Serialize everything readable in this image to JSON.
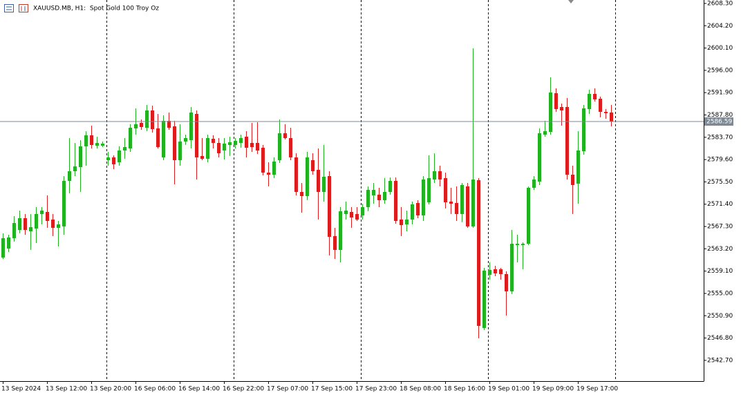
{
  "chart_data": {
    "type": "candlestick",
    "title": "XAUUSD.MB, H1:  Spot Gold 100 Troy Oz",
    "categories": [
      "13 Sep 2024",
      null,
      null,
      null,
      null,
      null,
      null,
      null,
      "13 Sep 12:00",
      null,
      null,
      null,
      null,
      null,
      null,
      null,
      "13 Sep 20:00",
      null,
      null,
      null,
      null,
      null,
      null,
      null,
      "16 Sep 06:00",
      null,
      null,
      null,
      null,
      null,
      null,
      null,
      "16 Sep 14:00",
      null,
      null,
      null,
      null,
      null,
      null,
      null,
      "16 Sep 22:00",
      null,
      null,
      null,
      null,
      null,
      null,
      null,
      "17 Sep 07:00",
      null,
      null,
      null,
      null,
      null,
      null,
      null,
      "17 Sep 15:00",
      null,
      null,
      null,
      null,
      null,
      null,
      null,
      "17 Sep 23:00",
      null,
      null,
      null,
      null,
      null,
      null,
      null,
      "18 Sep 08:00",
      null,
      null,
      null,
      null,
      null,
      null,
      null,
      "18 Sep 16:00",
      null,
      null,
      null,
      null,
      null,
      null,
      null,
      "19 Sep 01:00",
      null,
      null,
      null,
      null,
      null,
      null,
      null,
      "19 Sep 09:00",
      null,
      null,
      null,
      null,
      null,
      null,
      null,
      "19 Sep 17:00",
      null,
      null,
      null,
      null,
      null,
      null
    ],
    "open": [
      2561.6,
      2563.25,
      2565.15,
      2566.67,
      2568.83,
      2566.42,
      2566.93,
      2569.59,
      2569.97,
      2568.58,
      2567.05,
      2567.31,
      2575.68,
      2577.46,
      2578.22,
      2582.03,
      2584.06,
      2582.15,
      2582.15,
      2579.49,
      2580.0,
      2579.11,
      2581.27,
      2581.65,
      2585.33,
      2586.34,
      2585.45,
      2588.63,
      2585.33,
      2580.0,
      2586.72,
      2585.71,
      2579.49,
      2582.92,
      2583.17,
      2587.99,
      2580.25,
      2579.74,
      2583.42,
      2582.66,
      2581.27,
      2582.28,
      2582.28,
      2582.66,
      2583.8,
      2582.66,
      2582.66,
      2581.77,
      2577.2,
      2576.82,
      2579.49,
      2584.44,
      2583.55,
      2580.0,
      2573.65,
      2572.89,
      2579.49,
      2577.71,
      2573.65,
      2576.57,
      2565.53,
      2562.99,
      2569.59,
      2569.97,
      2569.59,
      2569.34,
      2570.86,
      2573.02,
      2573.14,
      2572.13,
      2573.65,
      2575.68,
      2568.58,
      2567.69,
      2568.58,
      2571.62,
      2569.34,
      2571.75,
      2575.94,
      2577.46,
      2576.19,
      2571.88,
      2571.62,
      2569.59,
      2574.67,
      2567.31,
      2575.81,
      2548.65,
      2558.42,
      2559.44,
      2559.44,
      2558.55,
      2555.38,
      2563.88,
      2563.88,
      2564.13,
      2574.41,
      2575.56,
      2584.18,
      2584.69,
      2591.8,
      2589.26,
      2589.26,
      2576.82,
      2575.17,
      2581.14,
      2588.88,
      2591.67,
      2590.78,
      2588.37,
      2588.25
    ],
    "high": [
      2566.04,
      2565.78,
      2569.21,
      2570.23,
      2569.59,
      2569.59,
      2570.86,
      2570.86,
      2573.02,
      2569.59,
      2568.32,
      2576.57,
      2583.55,
      2582.66,
      2583.17,
      2584.82,
      2585.83,
      2583.8,
      2582.92,
      2581.01,
      2580.38,
      2582.03,
      2583.55,
      2586.09,
      2589.01,
      2586.98,
      2589.64,
      2589.51,
      2587.99,
      2587.74,
      2588.25,
      2586.72,
      2586.09,
      2584.18,
      2589.26,
      2588.63,
      2583.55,
      2584.18,
      2584.06,
      2583.55,
      2583.55,
      2583.8,
      2583.55,
      2584.18,
      2584.82,
      2586.34,
      2586.47,
      2582.28,
      2579.11,
      2580.0,
      2586.98,
      2586.09,
      2585.45,
      2580.76,
      2575.3,
      2581.01,
      2580.76,
      2581.65,
      2582.28,
      2577.46,
      2567.05,
      2570.86,
      2571.88,
      2570.86,
      2570.86,
      2571.49,
      2574.67,
      2575.3,
      2574.41,
      2576.19,
      2576.32,
      2576.32,
      2570.86,
      2570.23,
      2571.88,
      2572.13,
      2576.57,
      2580.38,
      2580.76,
      2578.47,
      2577.2,
      2574.41,
      2574.67,
      2575.3,
      2575.3,
      2600.05,
      2576.19,
      2559.69,
      2560.71,
      2560.07,
      2559.69,
      2559.06,
      2566.67,
      2565.78,
      2564.39,
      2574.67,
      2576.57,
      2585.33,
      2586.72,
      2594.72,
      2592.69,
      2589.89,
      2590.91,
      2578.47,
      2584.82,
      2589.64,
      2592.43,
      2592.69,
      2591.16,
      2588.88,
      2589.64
    ],
    "low": [
      2561.34,
      2562.61,
      2564.51,
      2566.04,
      2565.78,
      2562.99,
      2564.26,
      2567.69,
      2567.05,
      2565.53,
      2563.63,
      2565.78,
      2573.4,
      2576.57,
      2573.65,
      2578.47,
      2581.65,
      2581.65,
      2581.9,
      2578.47,
      2577.84,
      2578.47,
      2579.74,
      2581.01,
      2584.18,
      2585.07,
      2584.82,
      2584.57,
      2581.65,
      2579.49,
      2585.07,
      2575.05,
      2578.47,
      2582.28,
      2581.65,
      2575.94,
      2579.49,
      2579.11,
      2581.65,
      2580.0,
      2579.62,
      2580.25,
      2581.65,
      2581.77,
      2580.0,
      2581.01,
      2580.63,
      2576.7,
      2574.67,
      2576.19,
      2578.98,
      2583.3,
      2579.49,
      2573.02,
      2569.84,
      2572.13,
      2576.82,
      2568.58,
      2571.88,
      2561.98,
      2561.34,
      2560.71,
      2568.58,
      2567.05,
      2568.32,
      2568.58,
      2570.1,
      2571.49,
      2570.86,
      2571.49,
      2573.14,
      2567.81,
      2565.53,
      2566.42,
      2567.69,
      2568.83,
      2568.32,
      2571.37,
      2575.3,
      2574.67,
      2570.61,
      2569.59,
      2568.32,
      2568.07,
      2567.05,
      2567.05,
      2546.75,
      2548.27,
      2557.54,
      2558.17,
      2557.54,
      2550.94,
      2554.87,
      2560.71,
      2559.44,
      2563.88,
      2574.03,
      2574.92,
      2583.8,
      2584.18,
      2588.37,
      2585.83,
      2575.94,
      2569.59,
      2571.49,
      2580.5,
      2587.99,
      2590.28,
      2587.36,
      2587.1,
      2585.71
    ],
    "close": [
      2565.15,
      2565.28,
      2567.94,
      2568.83,
      2566.67,
      2567.18,
      2569.59,
      2570.23,
      2568.32,
      2567.05,
      2567.69,
      2575.68,
      2577.46,
      2578.35,
      2582.03,
      2584.06,
      2582.28,
      2582.66,
      2582.53,
      2580.0,
      2578.73,
      2581.27,
      2581.9,
      2585.45,
      2586.09,
      2585.58,
      2588.63,
      2585.2,
      2581.9,
      2586.72,
      2585.45,
      2579.49,
      2582.92,
      2583.55,
      2588.25,
      2580.0,
      2579.74,
      2583.55,
      2582.66,
      2580.76,
      2582.53,
      2582.79,
      2583.04,
      2583.55,
      2581.77,
      2581.9,
      2581.27,
      2577.2,
      2576.82,
      2579.24,
      2584.44,
      2583.55,
      2580.0,
      2573.65,
      2572.89,
      2580.0,
      2577.46,
      2573.65,
      2576.44,
      2565.4,
      2562.99,
      2570.1,
      2570.23,
      2568.96,
      2568.58,
      2570.86,
      2574.03,
      2574.03,
      2572.13,
      2573.65,
      2575.68,
      2568.32,
      2567.56,
      2568.58,
      2571.37,
      2569.34,
      2575.94,
      2576.19,
      2577.46,
      2575.94,
      2571.75,
      2571.49,
      2569.59,
      2574.92,
      2567.31,
      2575.94,
      2549.03,
      2559.19,
      2559.31,
      2558.68,
      2558.55,
      2555.38,
      2564.13,
      2564.13,
      2564.13,
      2574.41,
      2575.94,
      2584.44,
      2584.82,
      2591.93,
      2588.88,
      2588.63,
      2576.82,
      2574.92,
      2581.27,
      2589.01,
      2591.67,
      2590.66,
      2588.37,
      2588.12,
      2586.59
    ],
    "up_color": "#1fb31f",
    "down_color": "#e01b1b",
    "last_price": 2586.59,
    "ylim": [
      2538.88,
      2608.93
    ],
    "yticks": [
      {
        "value": 2608.3,
        "label": "2608.30"
      },
      {
        "value": 2604.2,
        "label": "2604.20"
      },
      {
        "value": 2600.1,
        "label": "2600.10"
      },
      {
        "value": 2596.0,
        "label": "2596.00"
      },
      {
        "value": 2591.9,
        "label": "2591.90"
      },
      {
        "value": 2587.8,
        "label": "2587.80"
      },
      {
        "value": 2583.7,
        "label": "2583.70"
      },
      {
        "value": 2579.6,
        "label": "2579.60"
      },
      {
        "value": 2575.5,
        "label": "2575.50"
      },
      {
        "value": 2571.4,
        "label": "2571.40"
      },
      {
        "value": 2567.3,
        "label": "2567.30"
      },
      {
        "value": 2563.2,
        "label": "2563.20"
      },
      {
        "value": 2559.1,
        "label": "2559.10"
      },
      {
        "value": 2555.0,
        "label": "2555.00"
      },
      {
        "value": 2550.9,
        "label": "2550.90"
      },
      {
        "value": 2546.8,
        "label": "2546.80"
      },
      {
        "value": 2542.7,
        "label": "2542.70"
      }
    ]
  }
}
